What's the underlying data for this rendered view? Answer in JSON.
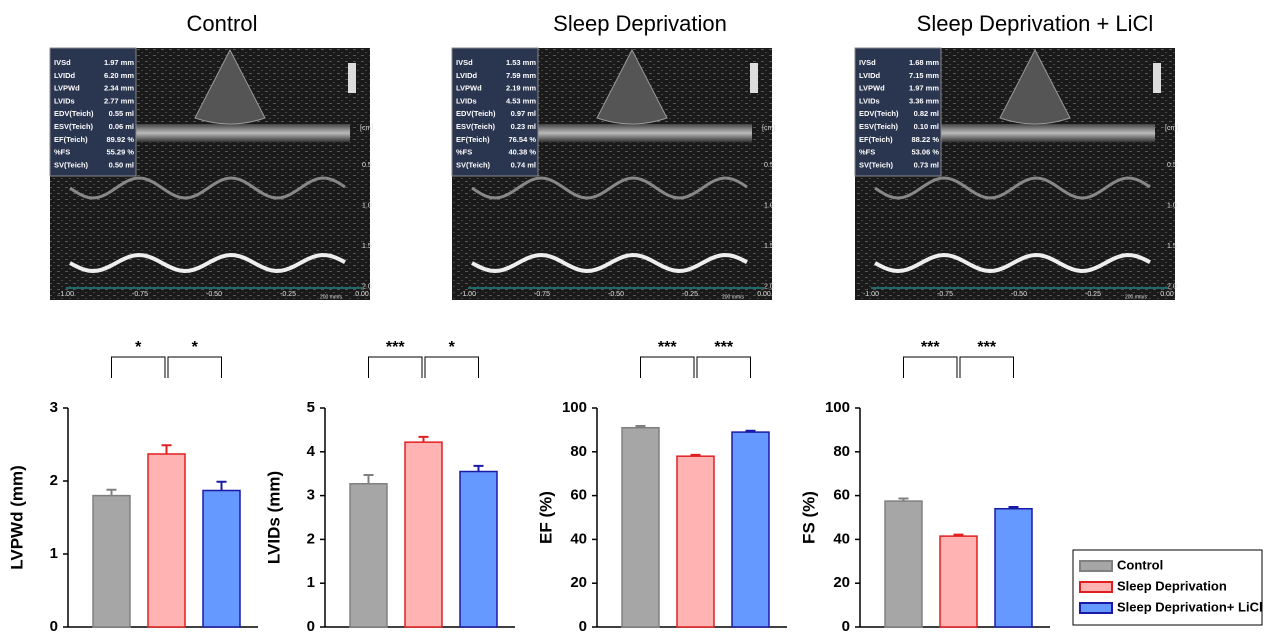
{
  "echo_panels": [
    {
      "title": "Control",
      "measurements": [
        {
          "label": "IVSd",
          "value": "1.97 mm"
        },
        {
          "label": "LVIDd",
          "value": "6.20 mm"
        },
        {
          "label": "LVPWd",
          "value": "2.34 mm"
        },
        {
          "label": "LVIDs",
          "value": "2.77 mm"
        },
        {
          "label": "EDV(Teich)",
          "value": "0.55 ml"
        },
        {
          "label": "ESV(Teich)",
          "value": "0.06 ml"
        },
        {
          "label": "EF(Teich)",
          "value": "89.92 %"
        },
        {
          "label": "%FS",
          "value": "55.29 %"
        },
        {
          "label": "SV(Teich)",
          "value": "0.50 ml"
        }
      ]
    },
    {
      "title": "Sleep Deprivation",
      "measurements": [
        {
          "label": "IVSd",
          "value": "1.53 mm"
        },
        {
          "label": "LVIDd",
          "value": "7.59 mm"
        },
        {
          "label": "LVPWd",
          "value": "2.19 mm"
        },
        {
          "label": "LVIDs",
          "value": "4.53 mm"
        },
        {
          "label": "EDV(Teich)",
          "value": "0.97 ml"
        },
        {
          "label": "ESV(Teich)",
          "value": "0.23 ml"
        },
        {
          "label": "EF(Teich)",
          "value": "76.54 %"
        },
        {
          "label": "%FS",
          "value": "40.38 %"
        },
        {
          "label": "SV(Teich)",
          "value": "0.74 ml"
        }
      ]
    },
    {
      "title": "Sleep Deprivation + LiCl",
      "measurements": [
        {
          "label": "IVSd",
          "value": "1.68 mm"
        },
        {
          "label": "LVIDd",
          "value": "7.15 mm"
        },
        {
          "label": "LVPWd",
          "value": "1.97 mm"
        },
        {
          "label": "LVIDs",
          "value": "3.36 mm"
        },
        {
          "label": "EDV(Teich)",
          "value": "0.82 ml"
        },
        {
          "label": "ESV(Teich)",
          "value": "0.10 ml"
        },
        {
          "label": "EF(Teich)",
          "value": "88.22 %"
        },
        {
          "label": "%FS",
          "value": "53.06 %"
        },
        {
          "label": "SV(Teich)",
          "value": "0.73 ml"
        }
      ]
    }
  ],
  "echo_axis": {
    "x_labels": [
      "-1.00",
      "-0.75",
      "-0.50",
      "-0.25",
      "0.00"
    ],
    "depth_labels": [
      "0.5",
      "1.0",
      "1.5",
      "2.0"
    ],
    "unit": "[cm]",
    "speed": "200 mm/s"
  },
  "groups": [
    {
      "name": "Control",
      "fill": "#a6a6a6",
      "stroke": "#808080"
    },
    {
      "name": "Sleep Deprivation",
      "fill": "#ffb3b3",
      "stroke": "#e02020"
    },
    {
      "name": "Sleep Deprivation+ LiCl",
      "fill": "#6699ff",
      "stroke": "#1a1aa6"
    }
  ],
  "chart_data": [
    {
      "type": "bar",
      "ylabel": "LVPWd (mm)",
      "values": [
        1.8,
        2.37,
        1.87
      ],
      "errors": [
        0.08,
        0.12,
        0.12
      ],
      "ylim": [
        0,
        3
      ],
      "yticks": [
        0,
        1,
        2,
        3
      ],
      "significance": [
        "*",
        "*"
      ]
    },
    {
      "type": "bar",
      "ylabel": "LVIDs (mm)",
      "values": [
        3.27,
        4.22,
        3.55
      ],
      "errors": [
        0.2,
        0.12,
        0.13
      ],
      "ylim": [
        0,
        5
      ],
      "yticks": [
        0,
        1,
        2,
        3,
        4,
        5
      ],
      "significance": [
        "***",
        "*"
      ]
    },
    {
      "type": "bar",
      "ylabel": "EF (%)",
      "values": [
        91,
        78,
        89
      ],
      "errors": [
        0.8,
        0.6,
        0.6
      ],
      "ylim": [
        0,
        100
      ],
      "yticks": [
        0,
        20,
        40,
        60,
        80,
        100
      ],
      "significance": [
        "***",
        "***"
      ]
    },
    {
      "type": "bar",
      "ylabel": "FS (%)",
      "values": [
        57.5,
        41.5,
        54
      ],
      "errors": [
        1.2,
        0.7,
        0.8
      ],
      "ylim": [
        0,
        100
      ],
      "yticks": [
        0,
        20,
        40,
        60,
        80,
        100
      ],
      "significance": [
        "***",
        "***"
      ]
    }
  ]
}
